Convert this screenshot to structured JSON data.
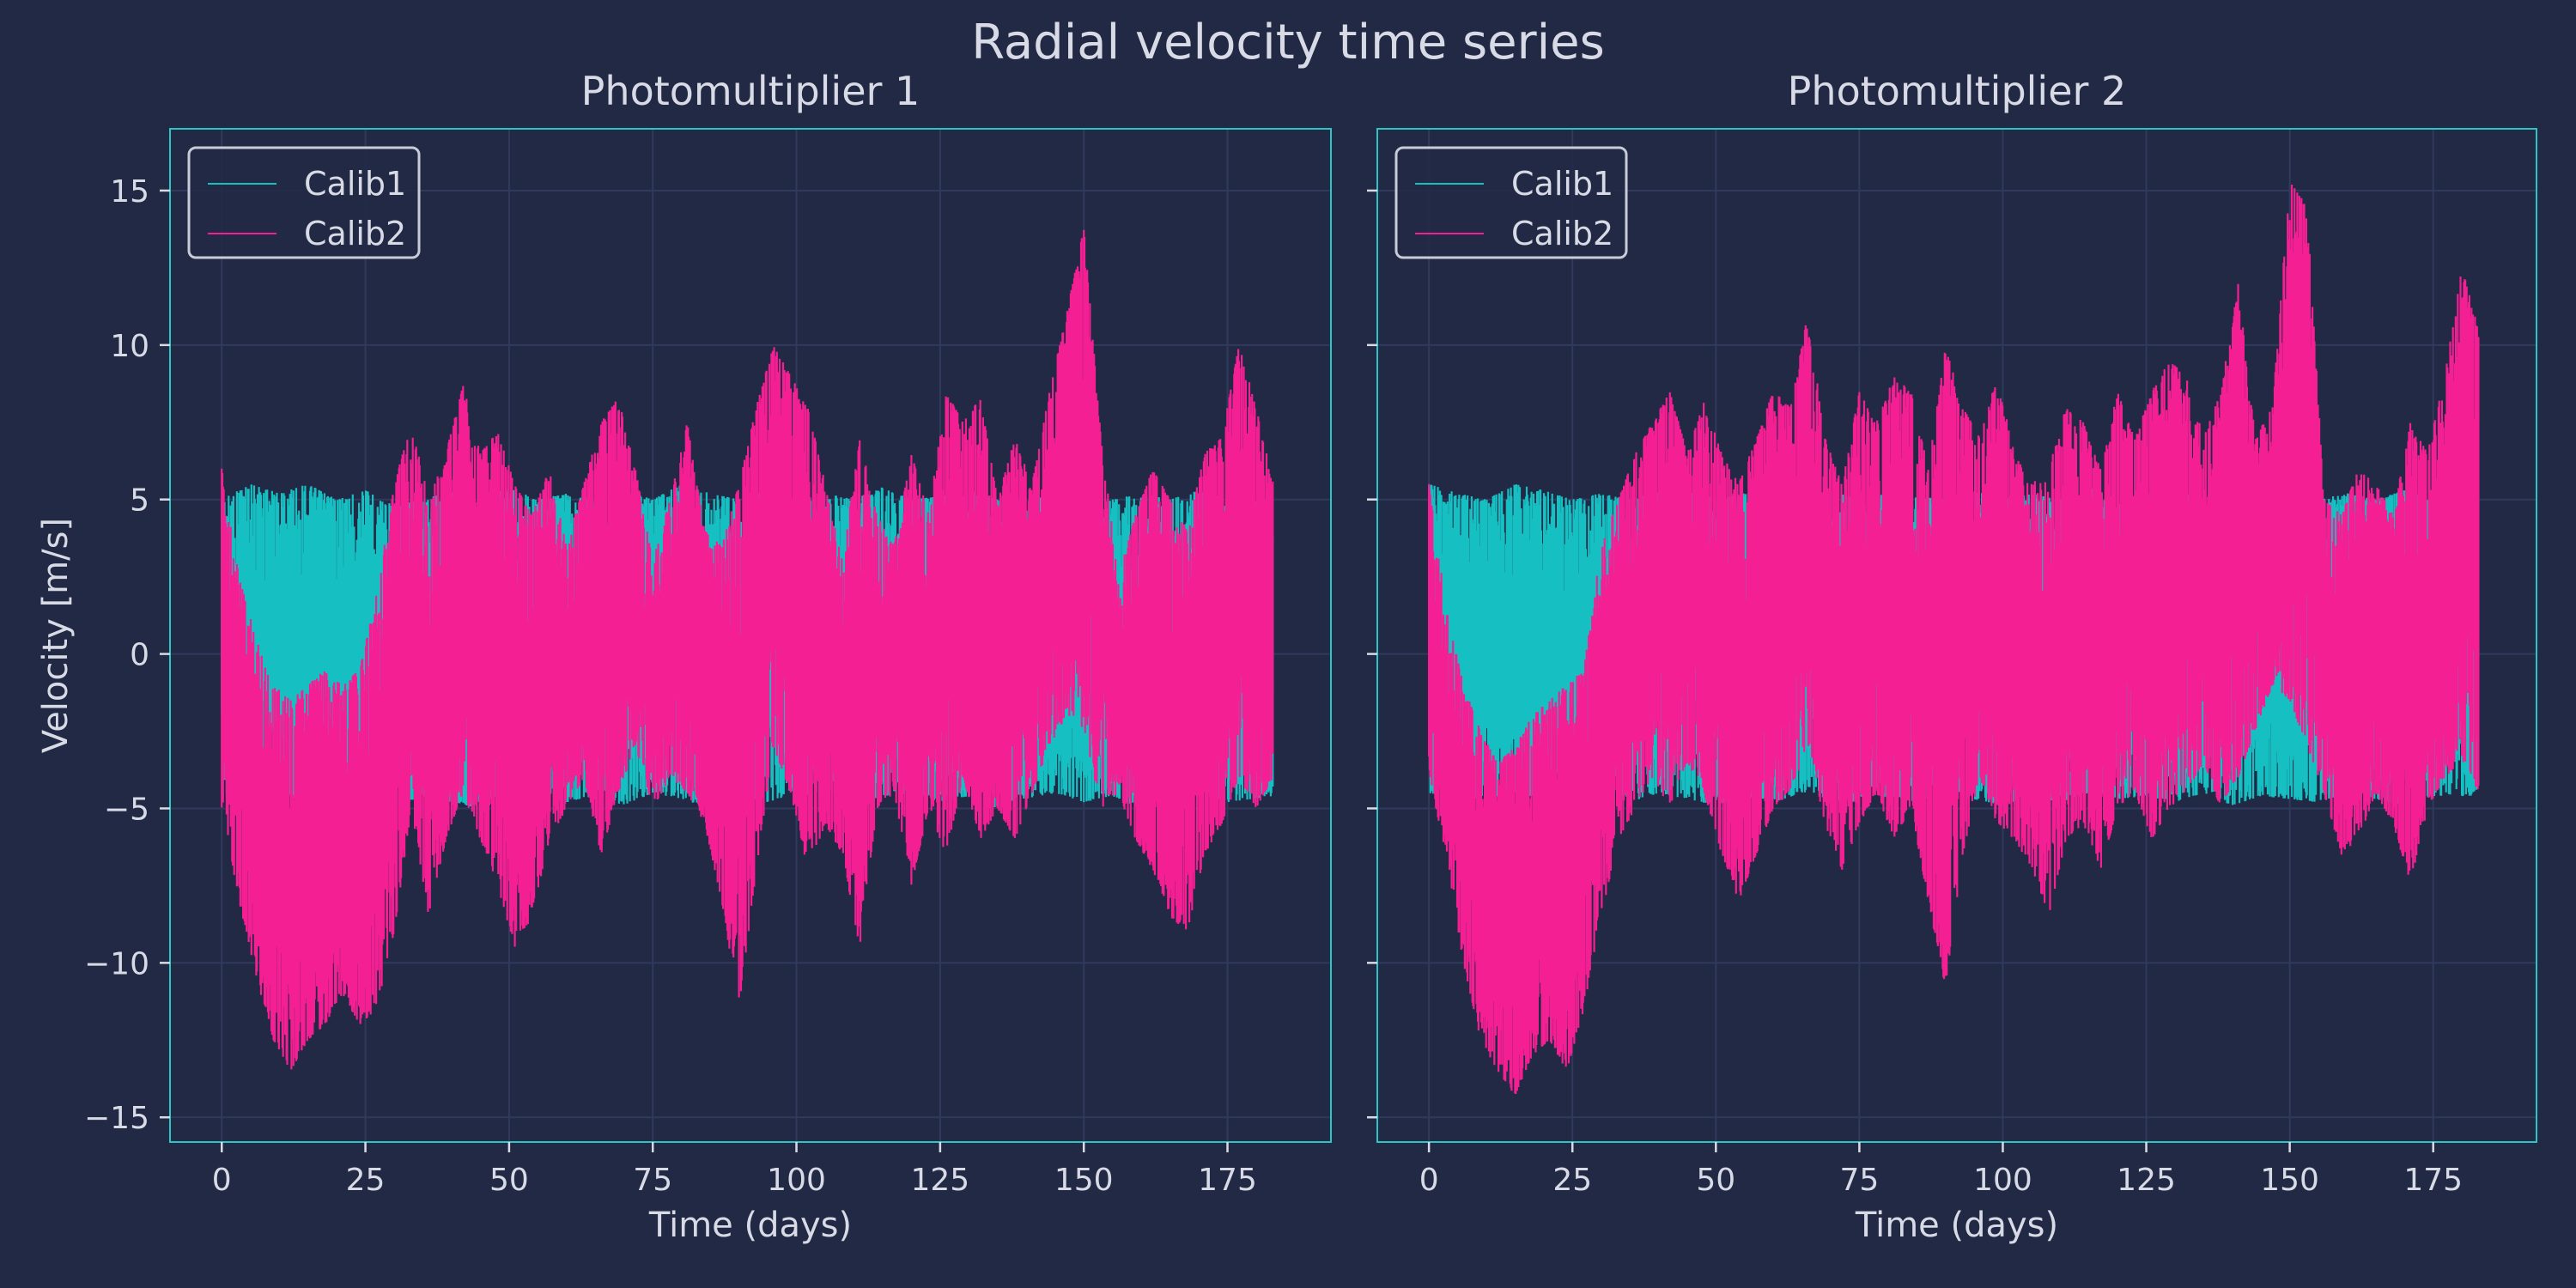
{
  "figure": {
    "title": "Radial velocity time series",
    "background": "#222945",
    "axes_edge_color": "#2ec4c4",
    "grid_color": "#303a5c",
    "text_color": "#d8dbe6"
  },
  "chart_data": [
    {
      "type": "line",
      "title": "Photomultiplier 1",
      "xlabel": "Time (days)",
      "ylabel": "Velocity [m/s]",
      "xlim": [
        -9,
        193
      ],
      "ylim": [
        -15.8,
        17
      ],
      "xticks": [
        0,
        25,
        50,
        75,
        100,
        125,
        150,
        175
      ],
      "yticks": [
        -15,
        -10,
        -5,
        0,
        5,
        10,
        15
      ],
      "ytick_labels": [
        "−15",
        "−10",
        "−5",
        "0",
        "5",
        "10",
        "15"
      ],
      "grid": true,
      "legend": "top-left",
      "series": [
        {
          "name": "Calib1",
          "color": "#16c0c2",
          "x": [
            0,
            5,
            10,
            15,
            20,
            25,
            30,
            35,
            40,
            45,
            50,
            55,
            60,
            65,
            70,
            75,
            80,
            85,
            90,
            95,
            100,
            105,
            110,
            115,
            120,
            125,
            130,
            135,
            140,
            145,
            150,
            155,
            160,
            165,
            170,
            175,
            183
          ],
          "upper": [
            5.0,
            5.5,
            5.2,
            5.5,
            5.0,
            5.3,
            4.8,
            5.0,
            5.3,
            5.0,
            5.4,
            5.0,
            5.2,
            5.0,
            5.3,
            5.0,
            5.5,
            5.2,
            5.0,
            5.3,
            5.0,
            5.2,
            5.0,
            5.4,
            5.0,
            5.1,
            5.3,
            5.0,
            5.2,
            5.0,
            5.3,
            5.0,
            5.2,
            5.0,
            5.3,
            5.0,
            5.0
          ],
          "lower": [
            -4.8,
            -4.5,
            -4.6,
            -4.8,
            -4.7,
            -4.5,
            -5.0,
            -4.6,
            -4.8,
            -5.0,
            -4.7,
            -4.5,
            -4.8,
            -4.6,
            -4.9,
            -4.5,
            -4.7,
            -5.0,
            -4.6,
            -4.8,
            -4.5,
            -4.7,
            -4.9,
            -4.6,
            -4.5,
            -4.8,
            -4.6,
            -5.0,
            -4.7,
            -4.5,
            -4.8,
            -4.6,
            -5.0,
            -4.7,
            -4.5,
            -4.8,
            -4.6
          ]
        },
        {
          "name": "Calib2",
          "color": "#f41f93",
          "x": [
            0,
            3,
            6,
            9,
            12,
            15,
            18,
            21,
            24,
            27,
            30,
            33,
            36,
            39,
            42,
            45,
            48,
            51,
            54,
            57,
            60,
            63,
            66,
            69,
            72,
            75,
            78,
            81,
            84,
            87,
            90,
            93,
            96,
            99,
            102,
            105,
            108,
            111,
            114,
            117,
            120,
            123,
            126,
            129,
            132,
            135,
            138,
            141,
            144,
            147,
            150,
            153,
            156,
            159,
            162,
            165,
            168,
            171,
            174,
            177,
            180,
            183
          ],
          "upper": [
            6.0,
            2.5,
            0.5,
            -1.0,
            -1.5,
            -1.0,
            -0.5,
            -1.0,
            -0.5,
            2.0,
            5.5,
            7.5,
            5.0,
            6.5,
            8.7,
            6.5,
            7.2,
            5.5,
            4.5,
            6.0,
            3.5,
            5.5,
            7.5,
            8.3,
            6.0,
            3.0,
            5.0,
            7.5,
            4.0,
            3.5,
            5.5,
            8.0,
            10.0,
            9.0,
            8.0,
            5.5,
            3.0,
            7.0,
            4.5,
            3.5,
            6.5,
            4.5,
            8.5,
            7.5,
            8.3,
            5.0,
            7.0,
            5.5,
            8.5,
            11.0,
            13.8,
            7.0,
            2.5,
            4.5,
            6.0,
            5.0,
            4.0,
            6.5,
            7.0,
            10.0,
            8.0,
            5.5
          ],
          "lower": [
            -5.0,
            -8.0,
            -10.5,
            -12.5,
            -13.5,
            -12.5,
            -12.0,
            -11.0,
            -12.0,
            -11.5,
            -9.0,
            -5.0,
            -8.5,
            -6.0,
            -4.5,
            -6.0,
            -7.5,
            -9.5,
            -8.5,
            -6.0,
            -5.0,
            -4.0,
            -6.5,
            -4.5,
            -3.0,
            -5.0,
            -4.0,
            -4.5,
            -5.5,
            -8.0,
            -11.5,
            -7.0,
            -3.0,
            -4.5,
            -7.0,
            -5.5,
            -6.5,
            -9.5,
            -5.0,
            -4.5,
            -7.5,
            -5.0,
            -6.5,
            -4.0,
            -6.0,
            -5.0,
            -6.0,
            -4.5,
            -3.0,
            -2.0,
            -2.5,
            -5.0,
            -4.5,
            -6.0,
            -7.0,
            -8.5,
            -9.0,
            -6.5,
            -5.5,
            -4.0,
            -5.0,
            -4.0
          ]
        }
      ]
    },
    {
      "type": "line",
      "title": "Photomultiplier 2",
      "xlabel": "Time (days)",
      "ylabel": "",
      "xlim": [
        -9,
        193
      ],
      "ylim": [
        -15.8,
        17
      ],
      "xticks": [
        0,
        25,
        50,
        75,
        100,
        125,
        150,
        175
      ],
      "yticks": [
        -15,
        -10,
        -5,
        0,
        5,
        10,
        15
      ],
      "grid": true,
      "legend": "top-left",
      "series": [
        {
          "name": "Calib1",
          "color": "#16c0c2",
          "x": [
            0,
            5,
            10,
            15,
            20,
            25,
            30,
            35,
            40,
            45,
            50,
            55,
            60,
            65,
            70,
            75,
            80,
            85,
            90,
            95,
            100,
            105,
            110,
            115,
            120,
            125,
            130,
            135,
            140,
            145,
            150,
            155,
            160,
            165,
            170,
            175,
            183
          ],
          "upper": [
            5.5,
            5.2,
            5.0,
            5.5,
            5.3,
            5.0,
            5.2,
            5.0,
            5.3,
            5.5,
            5.0,
            5.2,
            5.4,
            5.0,
            5.3,
            5.0,
            5.2,
            5.1,
            5.0,
            5.3,
            5.0,
            5.2,
            5.0,
            5.4,
            5.0,
            5.2,
            5.3,
            5.0,
            5.1,
            5.0,
            5.3,
            5.0,
            5.2,
            5.0,
            5.3,
            5.0,
            5.0
          ],
          "lower": [
            -4.5,
            -4.8,
            -4.6,
            -4.7,
            -4.5,
            -4.9,
            -4.6,
            -4.8,
            -4.5,
            -4.7,
            -4.9,
            -4.6,
            -4.8,
            -4.5,
            -4.7,
            -4.9,
            -4.6,
            -4.8,
            -4.5,
            -4.7,
            -4.9,
            -4.6,
            -4.8,
            -4.5,
            -4.7,
            -4.6,
            -4.8,
            -4.5,
            -4.9,
            -4.6,
            -4.7,
            -4.8,
            -4.5,
            -4.7,
            -4.9,
            -4.6,
            -4.6
          ]
        },
        {
          "name": "Calib2",
          "color": "#f41f93",
          "x": [
            0,
            3,
            6,
            9,
            12,
            15,
            18,
            21,
            24,
            27,
            30,
            33,
            36,
            39,
            42,
            45,
            48,
            51,
            54,
            57,
            60,
            63,
            66,
            69,
            72,
            75,
            78,
            81,
            84,
            87,
            90,
            93,
            96,
            99,
            102,
            105,
            108,
            111,
            114,
            117,
            120,
            123,
            126,
            129,
            132,
            135,
            138,
            141,
            144,
            147,
            150,
            153,
            156,
            159,
            162,
            165,
            168,
            171,
            174,
            177,
            180,
            183
          ],
          "upper": [
            5.5,
            1.5,
            -1.0,
            -2.5,
            -3.5,
            -3.0,
            -2.0,
            -1.5,
            -1.0,
            -0.5,
            3.5,
            5.0,
            6.5,
            7.5,
            8.5,
            6.5,
            8.2,
            6.5,
            5.5,
            7.0,
            8.5,
            8.0,
            11.0,
            7.0,
            5.5,
            8.5,
            7.5,
            9.0,
            8.5,
            6.0,
            10.0,
            8.0,
            7.0,
            9.0,
            6.5,
            5.5,
            6.0,
            8.0,
            7.5,
            6.0,
            8.5,
            7.0,
            8.5,
            9.5,
            9.0,
            7.0,
            8.5,
            12.0,
            7.0,
            8.0,
            15.3,
            14.5,
            5.0,
            4.5,
            6.0,
            5.5,
            4.5,
            7.5,
            6.5,
            9.0,
            12.5,
            10.5
          ],
          "lower": [
            -4.0,
            -6.5,
            -10.0,
            -12.5,
            -13.5,
            -14.3,
            -13.0,
            -12.5,
            -13.5,
            -11.5,
            -8.5,
            -6.0,
            -5.0,
            -4.0,
            -5.0,
            -3.5,
            -4.5,
            -6.5,
            -8.0,
            -6.5,
            -5.0,
            -4.5,
            -3.0,
            -5.5,
            -7.0,
            -5.5,
            -4.5,
            -6.0,
            -5.0,
            -8.0,
            -10.8,
            -6.5,
            -4.0,
            -5.5,
            -6.0,
            -7.0,
            -8.5,
            -6.0,
            -5.5,
            -7.0,
            -5.0,
            -4.5,
            -6.0,
            -5.0,
            -4.5,
            -3.5,
            -5.0,
            -4.0,
            -2.5,
            -1.0,
            -1.5,
            -3.0,
            -4.5,
            -6.5,
            -6.0,
            -4.5,
            -5.5,
            -7.5,
            -5.0,
            -4.0,
            -3.5,
            -4.5
          ]
        }
      ]
    }
  ]
}
